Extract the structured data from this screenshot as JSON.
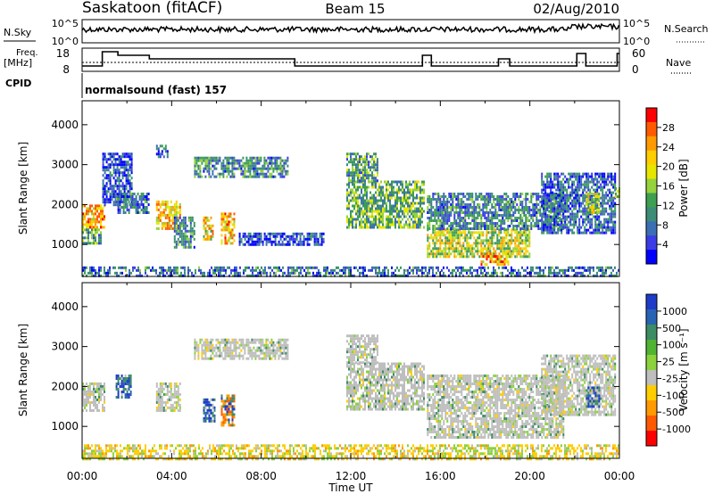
{
  "header": {
    "station": "Saskatoon (fitACF)",
    "beam": "Beam 15",
    "date": "02/Aug/2010"
  },
  "noise_panel": {
    "left_label": "N.Sky",
    "left_ticks": [
      "10^5",
      "10^0"
    ],
    "right_ticks": [
      "10^5",
      "10^0"
    ],
    "right_label": "N.Search"
  },
  "freq_panel": {
    "left_label_1": "Freq.",
    "left_label_2": "[MHz]",
    "left_ticks": [
      "18",
      "8"
    ],
    "right_ticks": [
      "60",
      "0"
    ],
    "right_label": "Nave"
  },
  "cpid": {
    "label": "CPID",
    "program": "normalsound (fast) 157"
  },
  "chart_data": [
    {
      "type": "heatmap",
      "name": "Power",
      "ylabel": "Slant Range [km]",
      "ylim": [
        200,
        4600
      ],
      "xlim": [
        0,
        24
      ],
      "yticks": [
        1000,
        2000,
        3000,
        4000
      ],
      "cbar_label": "Power [dB]",
      "cbar_ticks": [
        "28",
        "24",
        "20",
        "16",
        "12",
        "8",
        "4"
      ],
      "cbar_colors": [
        "#ff0000",
        "#ff5a00",
        "#ff9a00",
        "#ffcd00",
        "#e6e600",
        "#96d23c",
        "#3ca050",
        "#3c8c78",
        "#3c6eb4",
        "#3c3ce6",
        "#0000ff"
      ],
      "echo_regions": [
        {
          "t0": 0.0,
          "t1": 1.0,
          "r0": 1400,
          "r1": 2000,
          "level": 0.72
        },
        {
          "t0": 0.0,
          "t1": 0.8,
          "r0": 1000,
          "r1": 1400,
          "level": 0.35
        },
        {
          "t0": 0.9,
          "t1": 2.2,
          "r0": 2000,
          "r1": 3300,
          "level": 0.18
        },
        {
          "t0": 1.5,
          "t1": 3.0,
          "r0": 1800,
          "r1": 2300,
          "level": 0.25
        },
        {
          "t0": 3.3,
          "t1": 4.4,
          "r0": 1400,
          "r1": 2100,
          "level": 0.68
        },
        {
          "t0": 3.3,
          "t1": 3.8,
          "r0": 3200,
          "r1": 3500,
          "level": 0.22
        },
        {
          "t0": 4.1,
          "t1": 5.0,
          "r0": 900,
          "r1": 1700,
          "level": 0.3
        },
        {
          "t0": 5.4,
          "t1": 5.8,
          "r0": 1100,
          "r1": 1700,
          "level": 0.65
        },
        {
          "t0": 6.2,
          "t1": 6.8,
          "r0": 1000,
          "r1": 1800,
          "level": 0.7
        },
        {
          "t0": 5.0,
          "t1": 9.2,
          "r0": 2700,
          "r1": 3200,
          "level": 0.3
        },
        {
          "t0": 7.0,
          "t1": 10.8,
          "r0": 1000,
          "r1": 1300,
          "level": 0.15
        },
        {
          "t0": 11.8,
          "t1": 15.3,
          "r0": 1400,
          "r1": 2600,
          "level": 0.42
        },
        {
          "t0": 11.8,
          "t1": 13.2,
          "r0": 2600,
          "r1": 3300,
          "level": 0.38
        },
        {
          "t0": 15.4,
          "t1": 20.0,
          "r0": 700,
          "r1": 1400,
          "level": 0.55
        },
        {
          "t0": 15.4,
          "t1": 21.5,
          "r0": 1400,
          "r1": 2300,
          "level": 0.3
        },
        {
          "t0": 17.8,
          "t1": 19.0,
          "r0": 500,
          "r1": 800,
          "level": 0.75
        },
        {
          "t0": 20.5,
          "t1": 23.8,
          "r0": 1300,
          "r1": 2800,
          "level": 0.22
        },
        {
          "t0": 22.5,
          "t1": 23.1,
          "r0": 1800,
          "r1": 2300,
          "level": 0.55
        },
        {
          "t0": 23.8,
          "t1": 24.0,
          "r0": 2200,
          "r1": 2500,
          "level": 0.5
        },
        {
          "t0": 0.0,
          "t1": 24.0,
          "r0": 200,
          "r1": 450,
          "level": 0.25
        }
      ]
    },
    {
      "type": "heatmap",
      "name": "Velocity",
      "ylabel": "Slant Range [km]",
      "xlabel": "Time UT",
      "ylim": [
        200,
        4600
      ],
      "xlim": [
        0,
        24
      ],
      "yticks": [
        1000,
        2000,
        3000,
        4000
      ],
      "xticks": [
        "00:00",
        "04:00",
        "08:00",
        "12:00",
        "16:00",
        "20:00",
        "00:00"
      ],
      "cbar_label": "Velocity [m s⁻¹]",
      "cbar_ticks": [
        "1000",
        "500",
        "100",
        "25",
        "-25",
        "-100",
        "-500",
        "-1000"
      ],
      "cbar_colors": [
        "#1e3cc8",
        "#2864b4",
        "#3c8c64",
        "#50b432",
        "#8cd23c",
        "#bebebe",
        "#ffcd00",
        "#ff9a00",
        "#ff5a00",
        "#ff0000"
      ],
      "echo_regions": [
        {
          "t0": 0.0,
          "t1": 1.0,
          "r0": 1400,
          "r1": 2100,
          "vclass": "zero"
        },
        {
          "t0": 1.5,
          "t1": 2.2,
          "r0": 1700,
          "r1": 2300,
          "vclass": "pos"
        },
        {
          "t0": 3.3,
          "t1": 4.4,
          "r0": 1400,
          "r1": 2100,
          "vclass": "zero"
        },
        {
          "t0": 5.4,
          "t1": 5.9,
          "r0": 1100,
          "r1": 1700,
          "vclass": "pos"
        },
        {
          "t0": 6.2,
          "t1": 6.8,
          "r0": 1000,
          "r1": 1800,
          "vclass": "neg"
        },
        {
          "t0": 5.0,
          "t1": 9.2,
          "r0": 2700,
          "r1": 3200,
          "vclass": "zero"
        },
        {
          "t0": 11.8,
          "t1": 15.3,
          "r0": 1400,
          "r1": 2600,
          "vclass": "zero"
        },
        {
          "t0": 11.8,
          "t1": 13.2,
          "r0": 2600,
          "r1": 3300,
          "vclass": "zero"
        },
        {
          "t0": 15.4,
          "t1": 21.5,
          "r0": 700,
          "r1": 2300,
          "vclass": "zero"
        },
        {
          "t0": 20.5,
          "t1": 23.8,
          "r0": 1300,
          "r1": 2800,
          "vclass": "zero"
        },
        {
          "t0": 22.5,
          "t1": 23.1,
          "r0": 1500,
          "r1": 2000,
          "vclass": "pos"
        },
        {
          "t0": 0.0,
          "t1": 24.0,
          "r0": 200,
          "r1": 550,
          "vclass": "ground"
        }
      ]
    }
  ]
}
